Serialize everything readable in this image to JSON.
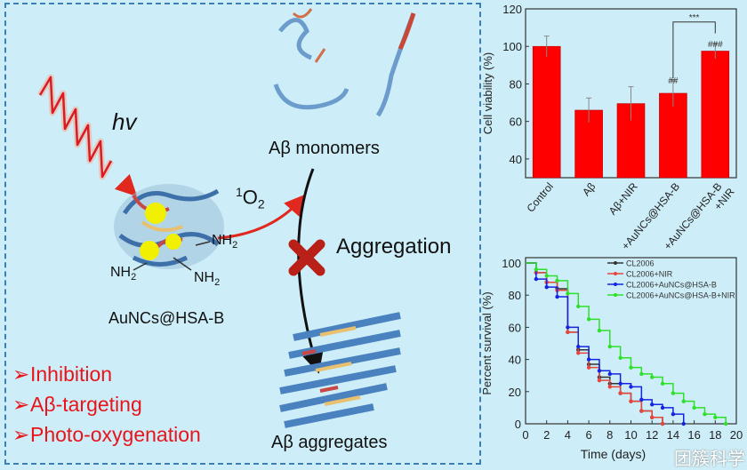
{
  "diagram": {
    "light_label": "hv",
    "monomers_label": "Aβ monomers",
    "singlet_oxygen_label": "1O2",
    "singlet_oxygen_super": "1",
    "singlet_oxygen_base": "O",
    "singlet_oxygen_sub": "2",
    "aggregation_label": "Aggregation",
    "nanocluster_label": "AuNCs@HSA-B",
    "amine_labels": [
      "NH2",
      "NH2",
      "NH2"
    ],
    "amine_base": "NH",
    "amine_sub": "2",
    "aggregates_label": "Aβ aggregates",
    "bullets": [
      "Inhibition",
      "Aβ-targeting",
      "Photo-oxygenation"
    ],
    "bullet_marker": "➢",
    "colors": {
      "background": "#cdeef8",
      "frame": "#3a7fb8",
      "accent_red": "#e8141a",
      "bar": "#ff0000"
    }
  },
  "watermark": {
    "text": "团簇科学"
  },
  "chart_data": [
    {
      "type": "bar",
      "title": "",
      "xlabel": "",
      "ylabel": "Cell viability (%)",
      "categories": [
        "Control",
        "Aβ",
        "Aβ+NIR",
        "+AuNCs@HSA-B",
        "+AuNCs@HSA-B +NIR"
      ],
      "category_lines": [
        [
          "Control"
        ],
        [
          "Aβ"
        ],
        [
          "Aβ+NIR"
        ],
        [
          "+AuNCs@HSA-B"
        ],
        [
          "+AuNCs@HSA-B",
          "+NIR"
        ]
      ],
      "values": [
        100,
        66,
        69.5,
        75,
        97.5
      ],
      "errors": [
        5.5,
        6.5,
        9,
        7,
        4
      ],
      "annotations": [
        "",
        "",
        "",
        "##",
        "###"
      ],
      "bracket_label": "***",
      "ylim": [
        30,
        120
      ],
      "yticks": [
        40,
        60,
        80,
        100,
        120
      ],
      "color": "#ff0000"
    },
    {
      "type": "line",
      "title": "",
      "xlabel": "Time (days)",
      "ylabel": "Percent survival (%)",
      "xlim": [
        0,
        20
      ],
      "ylim": [
        0,
        100
      ],
      "xticks": [
        0,
        2,
        4,
        6,
        8,
        10,
        12,
        14,
        16,
        18,
        20
      ],
      "yticks": [
        0,
        20,
        40,
        60,
        80,
        100
      ],
      "legend_position": "top-right",
      "series": [
        {
          "name": "CL2006",
          "color": "#333333",
          "x": [
            0,
            1,
            2,
            3,
            4,
            5,
            6,
            7,
            8,
            9,
            10,
            11,
            12,
            13
          ],
          "y": [
            100,
            94,
            88,
            84,
            57,
            46,
            37,
            29,
            25,
            19,
            14,
            8,
            4,
            0
          ]
        },
        {
          "name": "CL2006+NIR",
          "color": "#e8463c",
          "x": [
            0,
            1,
            2,
            3,
            4,
            5,
            6,
            7,
            8,
            9,
            10,
            11,
            12,
            13
          ],
          "y": [
            100,
            94,
            88,
            83,
            57,
            44,
            35,
            27,
            23,
            19,
            14,
            8,
            4,
            0
          ]
        },
        {
          "name": "CL2006+AuNCs@HSA-B",
          "color": "#1424e0",
          "x": [
            0,
            1,
            2,
            3,
            4,
            5,
            6,
            7,
            8,
            9,
            10,
            11,
            12,
            13,
            14,
            15
          ],
          "y": [
            100,
            90,
            85,
            79,
            60,
            48,
            40,
            33,
            31,
            25,
            23,
            15,
            12,
            10,
            6,
            0
          ]
        },
        {
          "name": "CL2006+AuNCs@HSA-B+NIR",
          "color": "#2ee02a",
          "x": [
            0,
            1,
            2,
            3,
            4,
            5,
            6,
            7,
            8,
            9,
            10,
            11,
            12,
            13,
            14,
            15,
            16,
            17,
            18,
            19
          ],
          "y": [
            100,
            96,
            92,
            89,
            81,
            73,
            65,
            58,
            48,
            41,
            35,
            31,
            29,
            25,
            19,
            14,
            10,
            6,
            4,
            0
          ]
        }
      ]
    }
  ]
}
